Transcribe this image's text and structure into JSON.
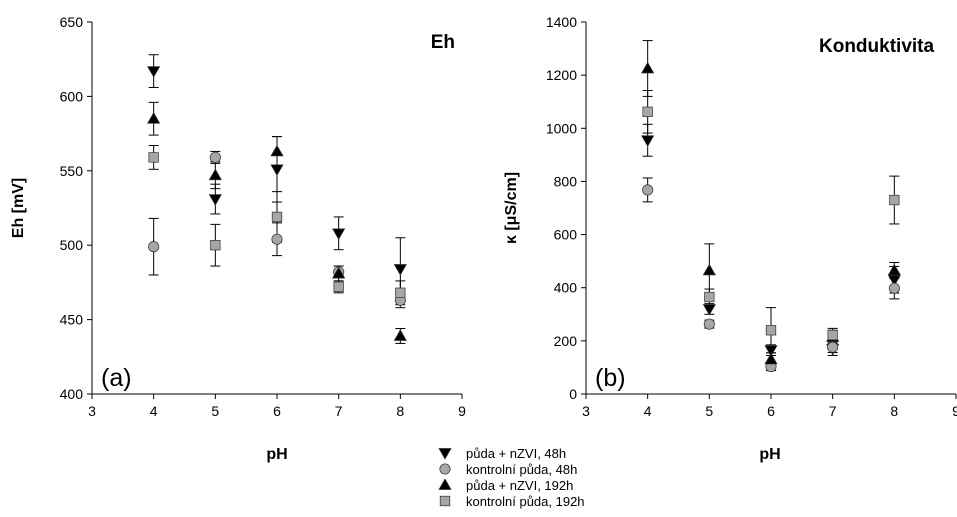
{
  "chart_data": [
    {
      "type": "scatter",
      "title": "Eh",
      "panel_label": "(a)",
      "xlabel": "pH",
      "ylabel": "Eh [mV]",
      "xlim": [
        3,
        9
      ],
      "ylim": [
        400,
        650
      ],
      "xticks": [
        3,
        4,
        5,
        6,
        7,
        8,
        9
      ],
      "yticks": [
        400,
        450,
        500,
        550,
        600,
        650
      ],
      "grid": false,
      "series": [
        {
          "name": "půda + nZVI, 48h",
          "marker": "triangle-down",
          "color": "#000000",
          "x": [
            4,
            5,
            6,
            7,
            8
          ],
          "y": [
            617,
            531,
            551,
            508,
            484
          ],
          "err": [
            11,
            10,
            22,
            11,
            21
          ]
        },
        {
          "name": "kontrolní půda, 48h",
          "marker": "circle",
          "color": "#a6a6a6",
          "x": [
            4,
            5,
            6,
            7,
            8
          ],
          "y": [
            499,
            559,
            504,
            482,
            463
          ],
          "err": [
            19,
            4,
            11,
            4,
            5
          ]
        },
        {
          "name": "půda + nZVI, 192h",
          "marker": "triangle-up",
          "color": "#000000",
          "x": [
            4,
            5,
            6,
            7,
            8
          ],
          "y": [
            585,
            547,
            563,
            481,
            439
          ],
          "err": [
            11,
            9,
            10,
            5,
            5
          ]
        },
        {
          "name": "kontrolní půda, 192h",
          "marker": "square",
          "color": "#a6a6a6",
          "x": [
            4,
            5,
            6,
            7,
            8
          ],
          "y": [
            559,
            500,
            519,
            472,
            468
          ],
          "err": [
            8,
            14,
            17,
            4,
            8
          ]
        }
      ]
    },
    {
      "type": "scatter",
      "title": "Konduktivita",
      "panel_label": "(b)",
      "xlabel": "pH",
      "ylabel": "κ [μS/cm]",
      "xlim": [
        3,
        9
      ],
      "ylim": [
        0,
        1400
      ],
      "xticks": [
        3,
        4,
        5,
        6,
        7,
        8,
        9
      ],
      "yticks": [
        0,
        200,
        400,
        600,
        800,
        1000,
        1200,
        1400
      ],
      "grid": false,
      "series": [
        {
          "name": "půda + nZVI, 48h",
          "marker": "triangle-down",
          "color": "#000000",
          "x": [
            4,
            5,
            6,
            7,
            8
          ],
          "y": [
            955,
            320,
            165,
            170,
            430
          ],
          "err": [
            60,
            20,
            20,
            25,
            50
          ]
        },
        {
          "name": "kontrolní půda, 48h",
          "marker": "circle",
          "color": "#a6a6a6",
          "x": [
            4,
            5,
            6,
            7,
            8
          ],
          "y": [
            768,
            263,
            103,
            176,
            398
          ],
          "err": [
            45,
            15,
            15,
            20,
            40
          ]
        },
        {
          "name": "půda + nZVI, 192h",
          "marker": "triangle-up",
          "color": "#000000",
          "x": [
            4,
            5,
            6,
            7,
            8
          ],
          "y": [
            1225,
            465,
            130,
            215,
            465
          ],
          "err": [
            105,
            100,
            25,
            25,
            30
          ]
        },
        {
          "name": "kontrolní půda, 192h",
          "marker": "square",
          "color": "#a6a6a6",
          "x": [
            4,
            5,
            6,
            7,
            8
          ],
          "y": [
            1062,
            365,
            240,
            222,
            730
          ],
          "err": [
            80,
            30,
            85,
            25,
            90
          ]
        }
      ]
    }
  ],
  "legend": {
    "placement": "bottom-center",
    "entries": [
      {
        "label": "půda + nZVI, 48h",
        "marker": "triangle-down",
        "color": "#000000"
      },
      {
        "label": "kontrolní půda, 48h",
        "marker": "circle",
        "color": "#a6a6a6"
      },
      {
        "label": "půda + nZVI, 192h",
        "marker": "triangle-up",
        "color": "#000000"
      },
      {
        "label": "kontrolní půda, 192h",
        "marker": "square",
        "color": "#a6a6a6"
      }
    ]
  }
}
